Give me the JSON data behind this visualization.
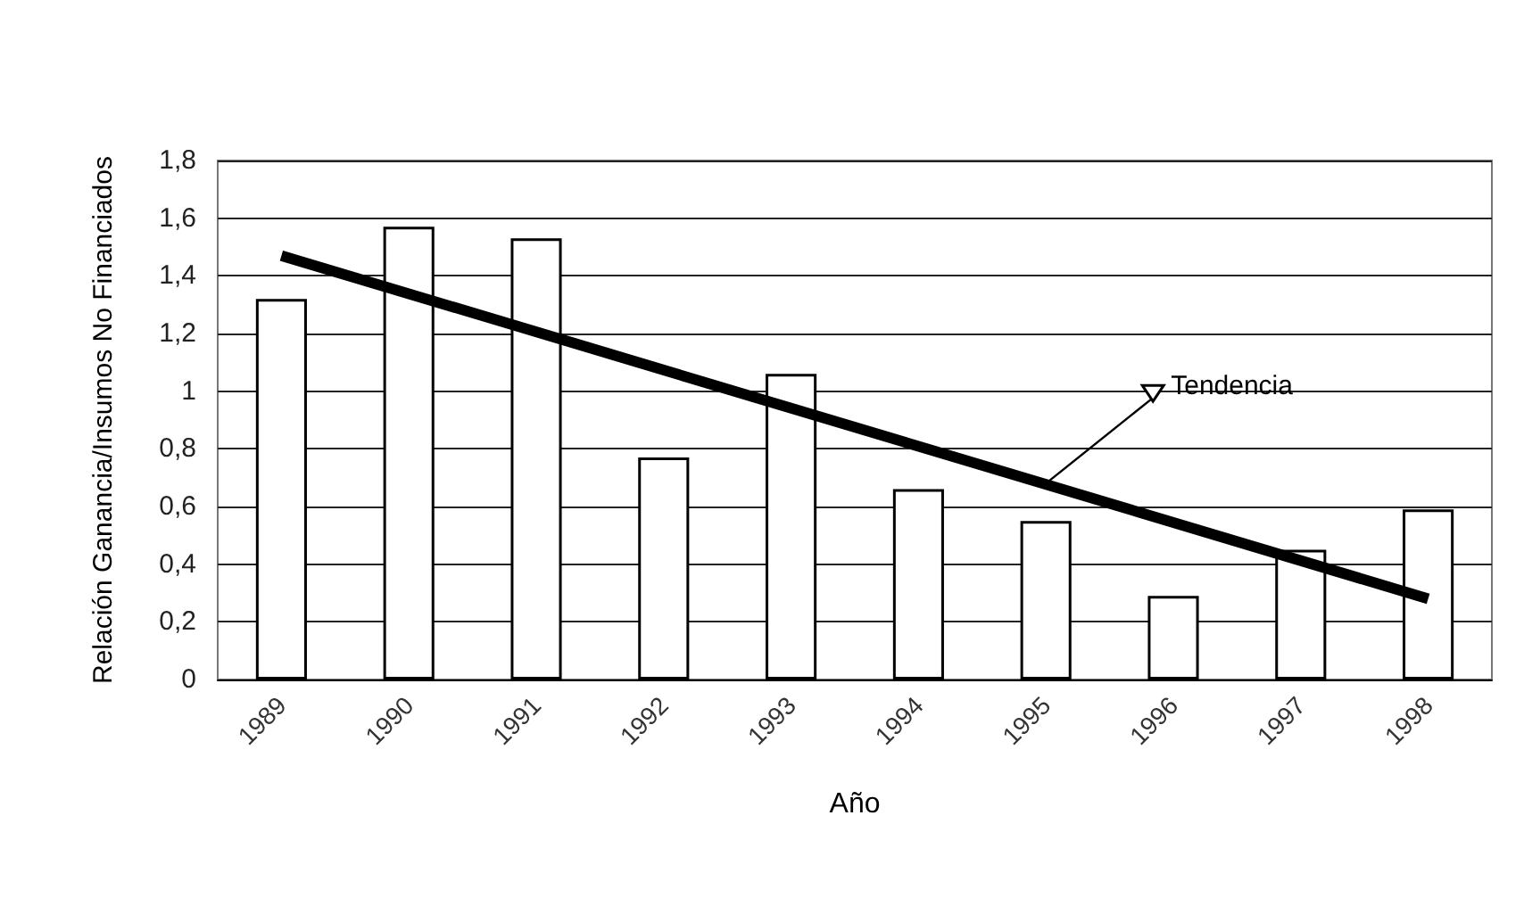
{
  "chart_data": {
    "type": "bar",
    "xlabel": "Año",
    "ylabel": "Relación Ganancia/Insumos No Financiados",
    "categories": [
      "1989",
      "1990",
      "1991",
      "1992",
      "1993",
      "1994",
      "1995",
      "1996",
      "1997",
      "1998"
    ],
    "series": [
      {
        "color": "#ffffff",
        "values": [
          1.32,
          1.57,
          1.53,
          0.77,
          1.06,
          0.66,
          0.55,
          0.29,
          0.45,
          0.59
        ]
      },
      {
        "type": "line",
        "color": "#000000",
        "values": [
          1.47,
          null,
          null,
          null,
          null,
          null,
          null,
          null,
          null,
          0.28
        ]
      }
    ],
    "annotations": [
      {
        "text": "Tendencia",
        "x": "1995",
        "y": 0.68
      }
    ],
    "ylim": [
      0,
      1.8
    ],
    "yticks": [
      0,
      {
        "value": 0.2,
        "label": "0,2"
      },
      {
        "value": 0.4,
        "label": "0,4"
      },
      {
        "value": 0.6,
        "label": "0,6"
      },
      {
        "value": 0.8,
        "label": "0,8"
      },
      1,
      {
        "value": 1.2,
        "label": "1,2"
      },
      {
        "value": 1.4,
        "label": "1,4"
      },
      {
        "value": 1.6,
        "label": "1,6"
      },
      {
        "value": 1.8,
        "label": "1,8"
      }
    ],
    "grid": "y",
    "marker": "none",
    "line_style": "solid"
  }
}
